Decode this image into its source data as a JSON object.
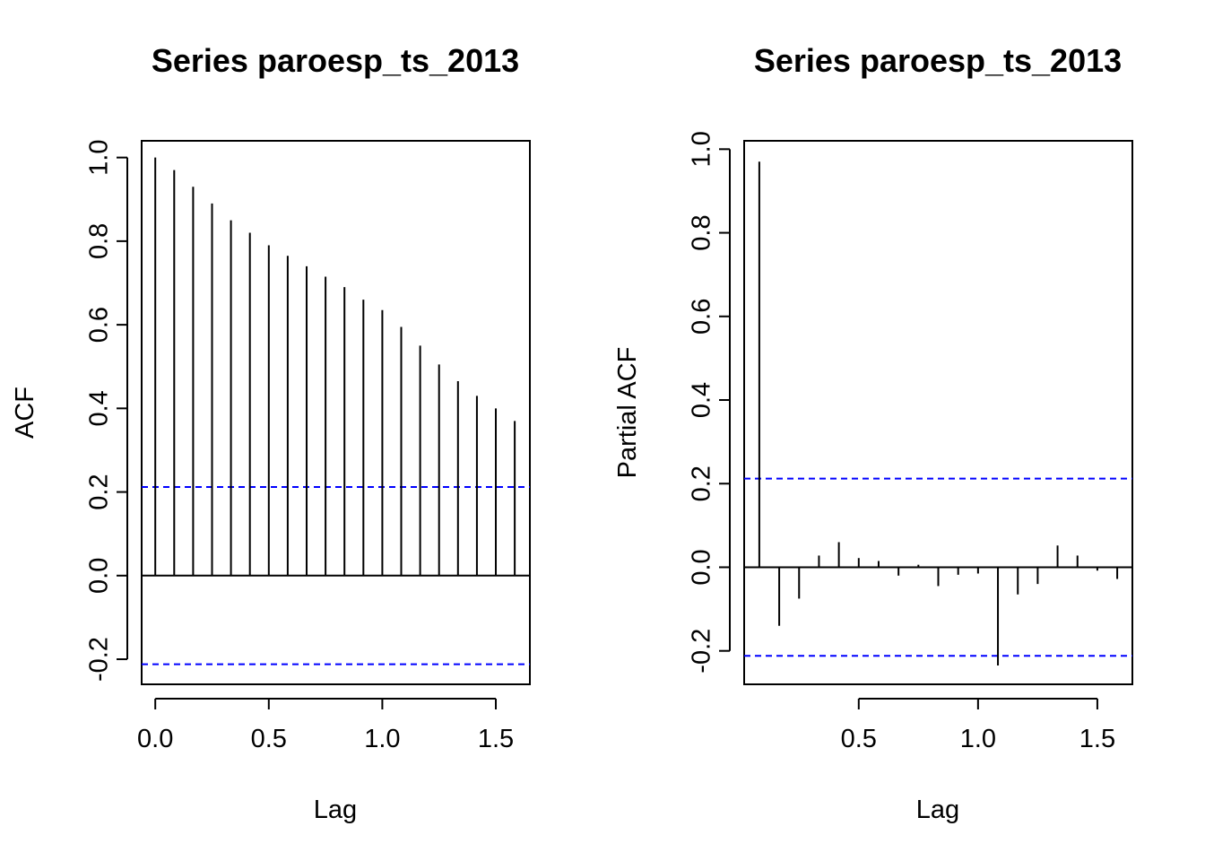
{
  "chart_data": [
    {
      "type": "bar",
      "title": "Series  paroesp_ts_2013",
      "xlabel": "Lag",
      "ylabel": "ACF",
      "xlim": [
        -0.06,
        1.65
      ],
      "ylim": [
        -0.26,
        1.04
      ],
      "x_ticks": [
        "0.0",
        "0.5",
        "1.0",
        "1.5"
      ],
      "y_ticks": [
        "-0.2",
        "0.0",
        "0.2",
        "0.4",
        "0.6",
        "0.8",
        "1.0"
      ],
      "lags": [
        0.0,
        0.0833,
        0.1667,
        0.25,
        0.3333,
        0.4167,
        0.5,
        0.5833,
        0.6667,
        0.75,
        0.8333,
        0.9167,
        1.0,
        1.0833,
        1.1667,
        1.25,
        1.3333,
        1.4167,
        1.5,
        1.5833
      ],
      "values": [
        1.0,
        0.97,
        0.93,
        0.89,
        0.85,
        0.82,
        0.79,
        0.765,
        0.74,
        0.715,
        0.69,
        0.66,
        0.635,
        0.595,
        0.55,
        0.505,
        0.465,
        0.43,
        0.4,
        0.37
      ],
      "confidence_bound": 0.212,
      "confidence_color": "#0000ff",
      "grid": false
    },
    {
      "type": "bar",
      "title": "Series  paroesp_ts_2013",
      "xlabel": "Lag",
      "ylabel": "Partial ACF",
      "xlim": [
        0.0198,
        1.6468
      ],
      "ylim": [
        -0.28,
        1.02
      ],
      "x_ticks": [
        "0.5",
        "1.0",
        "1.5"
      ],
      "y_ticks": [
        "-0.2",
        "0.0",
        "0.2",
        "0.4",
        "0.6",
        "0.8",
        "1.0"
      ],
      "lags": [
        0.0833,
        0.1667,
        0.25,
        0.3333,
        0.4167,
        0.5,
        0.5833,
        0.6667,
        0.75,
        0.8333,
        0.9167,
        1.0,
        1.0833,
        1.1667,
        1.25,
        1.3333,
        1.4167,
        1.5,
        1.5833
      ],
      "values": [
        0.97,
        -0.14,
        -0.075,
        0.028,
        0.06,
        0.022,
        0.015,
        -0.02,
        0.006,
        -0.045,
        -0.018,
        -0.015,
        -0.235,
        -0.065,
        -0.04,
        0.052,
        0.028,
        -0.008,
        -0.028
      ],
      "confidence_bound": 0.212,
      "confidence_color": "#0000ff",
      "grid": false
    }
  ]
}
